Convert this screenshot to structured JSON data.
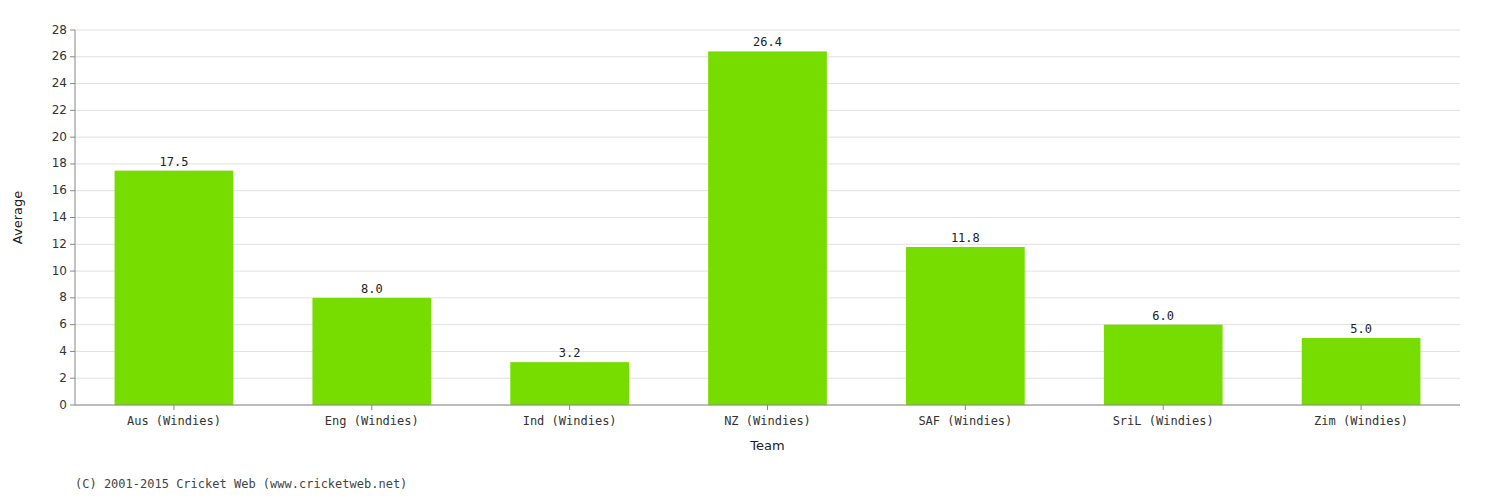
{
  "chart_data": {
    "type": "bar",
    "categories": [
      "Aus (Windies)",
      "Eng (Windies)",
      "Ind (Windies)",
      "NZ (Windies)",
      "SAF (Windies)",
      "SriL (Windies)",
      "Zim (Windies)"
    ],
    "values": [
      17.5,
      8.0,
      3.2,
      26.4,
      11.8,
      6.0,
      5.0
    ],
    "value_labels": [
      "17.5",
      "8.0",
      "3.2",
      "26.4",
      "11.8",
      "6.0",
      "5.0"
    ],
    "color": "#77dd00",
    "xlabel": "Team",
    "ylabel": "Average",
    "ylim": [
      0,
      28
    ],
    "yticks": [
      0,
      2,
      4,
      6,
      8,
      10,
      12,
      14,
      16,
      18,
      20,
      22,
      24,
      26,
      28
    ],
    "grid": true,
    "data_labels": true,
    "annotations": [
      "(C) 2001-2015 Cricket Web (www.cricketweb.net)"
    ]
  }
}
